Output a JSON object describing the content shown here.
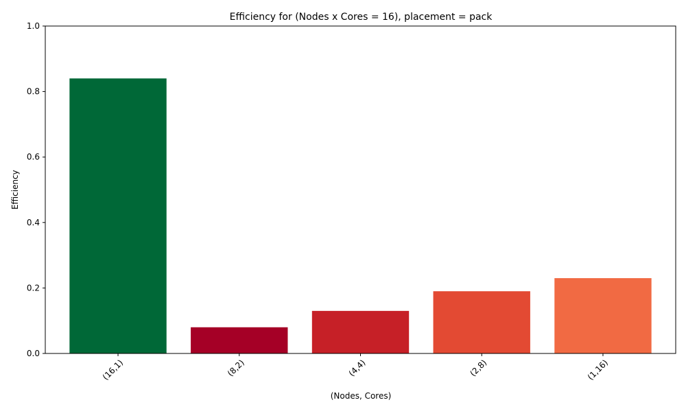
{
  "chart_data": {
    "type": "bar",
    "title": "Efficiency for (Nodes x Cores = 16), placement = pack",
    "xlabel": "(Nodes, Cores)",
    "ylabel": "Efficiency",
    "ylim": [
      0,
      1.0
    ],
    "yticks": [
      "0.0",
      "0.2",
      "0.4",
      "0.6",
      "0.8",
      "1.0"
    ],
    "categories": [
      "(16,1)",
      "(8,2)",
      "(4,4)",
      "(2,8)",
      "(1,16)"
    ],
    "values": [
      0.84,
      0.08,
      0.13,
      0.19,
      0.23
    ],
    "colors": [
      "#006837",
      "#a50026",
      "#c62027",
      "#e34a33",
      "#f16a43"
    ],
    "grid": false,
    "legend": "none"
  }
}
